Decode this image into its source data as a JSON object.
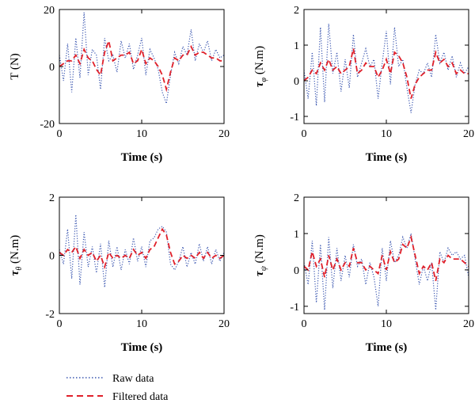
{
  "legend": {
    "raw_label": "Raw data",
    "filtered_label": "Filtered data",
    "raw_color": "#3a56b0",
    "filtered_color": "#e0202a"
  },
  "chart_data": [
    {
      "id": "thrust",
      "type": "line",
      "title": "",
      "xlabel": "Time (s)",
      "ylabel": "T (N)",
      "xlim": [
        0,
        20
      ],
      "ylim": [
        -20,
        20
      ],
      "xticks": [
        0,
        10,
        20
      ],
      "yticks": [
        -20,
        0,
        20
      ],
      "series": [
        {
          "name": "Raw data",
          "x": [
            0,
            0.5,
            1,
            1.5,
            2,
            2.5,
            3,
            3.5,
            4,
            4.5,
            5,
            5.5,
            6,
            6.5,
            7,
            7.5,
            8,
            8.5,
            9,
            9.5,
            10,
            10.5,
            11,
            11.5,
            12,
            12.5,
            13,
            13.5,
            14,
            14.5,
            15,
            15.5,
            16,
            16.5,
            17,
            17.5,
            18,
            18.5,
            19,
            19.5,
            20
          ],
          "y": [
            4,
            -5,
            8,
            -9,
            10,
            -4,
            19,
            -3,
            6,
            4,
            -8,
            10,
            2,
            4,
            -2,
            9,
            3,
            8,
            -1,
            4,
            10,
            -3,
            6,
            3,
            -1,
            -9,
            -13,
            -3,
            5,
            1,
            7,
            4,
            13,
            2,
            8,
            5,
            9,
            2,
            6,
            3,
            4
          ]
        },
        {
          "name": "Filtered data",
          "x": [
            0,
            0.5,
            1,
            1.5,
            2,
            2.5,
            3,
            3.5,
            4,
            4.5,
            5,
            5.5,
            6,
            6.5,
            7,
            7.5,
            8,
            8.5,
            9,
            9.5,
            10,
            10.5,
            11,
            11.5,
            12,
            12.5,
            13,
            13.5,
            14,
            14.5,
            15,
            15.5,
            16,
            16.5,
            17,
            17.5,
            18,
            18.5,
            19,
            19.5,
            20
          ],
          "y": [
            0,
            1,
            2,
            2,
            4,
            1,
            6,
            3,
            2,
            -1,
            -3,
            5,
            9,
            2,
            3,
            4,
            4,
            5,
            1,
            2,
            6,
            1,
            3,
            2,
            0,
            -3,
            -8,
            -2,
            3,
            2,
            4,
            4,
            7,
            4,
            5,
            5,
            4,
            3,
            3,
            2,
            2
          ]
        }
      ]
    },
    {
      "id": "roll",
      "type": "line",
      "title": "",
      "xlabel": "Time (s)",
      "ylabel_symbol": "τ",
      "ylabel_sub": "φ",
      "ylabel_unit": " (N.m)",
      "xlim": [
        0,
        20
      ],
      "ylim": [
        -1.2,
        2
      ],
      "xticks": [
        0,
        10,
        20
      ],
      "yticks": [
        -1,
        0,
        1,
        2
      ],
      "series": [
        {
          "name": "Raw data",
          "x": [
            0,
            0.5,
            1,
            1.5,
            2,
            2.5,
            3,
            3.5,
            4,
            4.5,
            5,
            5.5,
            6,
            6.5,
            7,
            7.5,
            8,
            8.5,
            9,
            9.5,
            10,
            10.5,
            11,
            11.5,
            12,
            12.5,
            13,
            13.5,
            14,
            14.5,
            15,
            15.5,
            16,
            16.5,
            17,
            17.5,
            18,
            18.5,
            19,
            19.5,
            20
          ],
          "y": [
            0.3,
            -0.5,
            0.8,
            -0.7,
            1.5,
            -0.6,
            1.6,
            0.2,
            0.8,
            -0.3,
            0.6,
            -0.2,
            1.3,
            0.1,
            0.5,
            0.9,
            0.4,
            0.6,
            -0.5,
            0.5,
            1.4,
            -0.1,
            1.5,
            0.4,
            0.6,
            -0.2,
            -0.9,
            -0.1,
            0.3,
            0.2,
            0.5,
            0.1,
            1.3,
            0.5,
            0.8,
            0.3,
            0.7,
            0.1,
            0.5,
            0.2,
            0.4
          ]
        },
        {
          "name": "Filtered data",
          "x": [
            0,
            0.5,
            1,
            1.5,
            2,
            2.5,
            3,
            3.5,
            4,
            4.5,
            5,
            5.5,
            6,
            6.5,
            7,
            7.5,
            8,
            8.5,
            9,
            9.5,
            10,
            10.5,
            11,
            11.5,
            12,
            12.5,
            13,
            13.5,
            14,
            14.5,
            15,
            15.5,
            16,
            16.5,
            17,
            17.5,
            18,
            18.5,
            19,
            19.5,
            20
          ],
          "y": [
            0,
            0.1,
            0.3,
            0.2,
            0.5,
            0.3,
            0.6,
            0.3,
            0.4,
            0.2,
            0.3,
            0.4,
            0.9,
            0.2,
            0.3,
            0.5,
            0.4,
            0.4,
            0.1,
            0.3,
            0.6,
            0.2,
            0.8,
            0.7,
            0.5,
            0.1,
            -0.5,
            -0.1,
            0.1,
            0.2,
            0.3,
            0.3,
            0.8,
            0.5,
            0.6,
            0.4,
            0.5,
            0.2,
            0.3,
            0.2,
            0.2
          ]
        }
      ]
    },
    {
      "id": "pitch",
      "type": "line",
      "title": "",
      "xlabel": "Time (s)",
      "ylabel_symbol": "τ",
      "ylabel_sub": "θ",
      "ylabel_unit": " (N.m)",
      "xlim": [
        0,
        20
      ],
      "ylim": [
        -2,
        2
      ],
      "xticks": [
        0,
        10,
        20
      ],
      "yticks": [
        -2,
        0,
        2
      ],
      "series": [
        {
          "name": "Raw data",
          "x": [
            0,
            0.5,
            1,
            1.5,
            2,
            2.5,
            3,
            3.5,
            4,
            4.5,
            5,
            5.5,
            6,
            6.5,
            7,
            7.5,
            8,
            8.5,
            9,
            9.5,
            10,
            10.5,
            11,
            11.5,
            12,
            12.5,
            13,
            13.5,
            14,
            14.5,
            15,
            15.5,
            16,
            16.5,
            17,
            17.5,
            18,
            18.5,
            19,
            19.5,
            20
          ],
          "y": [
            0.2,
            -0.3,
            0.9,
            -0.8,
            1.4,
            -1.0,
            0.8,
            -0.4,
            0.3,
            -0.6,
            0.4,
            -1.1,
            0.5,
            -0.4,
            0.3,
            -0.5,
            0.2,
            -0.3,
            0.6,
            -0.2,
            0.3,
            -0.4,
            0.5,
            0.6,
            0.9,
            1.0,
            0.8,
            -0.3,
            -0.5,
            -0.2,
            0.3,
            -0.4,
            0.1,
            -0.3,
            0.4,
            -0.2,
            0.3,
            -0.3,
            0.2,
            -0.2,
            0.1
          ]
        },
        {
          "name": "Filtered data",
          "x": [
            0,
            0.5,
            1,
            1.5,
            2,
            2.5,
            3,
            3.5,
            4,
            4.5,
            5,
            5.5,
            6,
            6.5,
            7,
            7.5,
            8,
            8.5,
            9,
            9.5,
            10,
            10.5,
            11,
            11.5,
            12,
            12.5,
            13,
            13.5,
            14,
            14.5,
            15,
            15.5,
            16,
            16.5,
            17,
            17.5,
            18,
            18.5,
            19,
            19.5,
            20
          ],
          "y": [
            0.1,
            0.0,
            0.2,
            0.1,
            0.3,
            -0.1,
            0.2,
            0.0,
            0.1,
            -0.2,
            0.0,
            -0.4,
            0.1,
            -0.1,
            0.0,
            -0.1,
            0.0,
            -0.1,
            0.2,
            0.0,
            0.1,
            -0.1,
            0.2,
            0.3,
            0.6,
            0.9,
            0.7,
            0.1,
            -0.3,
            -0.2,
            0.0,
            -0.1,
            0.0,
            -0.1,
            0.1,
            -0.1,
            0.1,
            -0.1,
            0.0,
            -0.1,
            0.0
          ]
        }
      ]
    },
    {
      "id": "yaw",
      "type": "line",
      "title": "",
      "xlabel": "Time (s)",
      "ylabel_symbol": "τ",
      "ylabel_sub": "ψ",
      "ylabel_unit": " (N.m)",
      "xlim": [
        0,
        20
      ],
      "ylim": [
        -1.2,
        2
      ],
      "xticks": [
        0,
        10,
        20
      ],
      "yticks": [
        -1,
        0,
        1,
        2
      ],
      "series": [
        {
          "name": "Raw data",
          "x": [
            0,
            0.5,
            1,
            1.5,
            2,
            2.5,
            3,
            3.5,
            4,
            4.5,
            5,
            5.5,
            6,
            6.5,
            7,
            7.5,
            8,
            8.5,
            9,
            9.5,
            10,
            10.5,
            11,
            11.5,
            12,
            12.5,
            13,
            13.5,
            14,
            14.5,
            15,
            15.5,
            16,
            16.5,
            17,
            17.5,
            18,
            18.5,
            19,
            19.5,
            20
          ],
          "y": [
            0.2,
            -0.4,
            0.8,
            -0.9,
            0.7,
            -1.1,
            0.9,
            -0.5,
            0.6,
            -0.3,
            0.4,
            -0.2,
            0.7,
            0.1,
            0.3,
            -0.4,
            0.2,
            -0.2,
            -1.0,
            0.6,
            -0.3,
            0.8,
            0.2,
            0.4,
            0.9,
            0.6,
            1.0,
            0.3,
            -0.4,
            0.1,
            -0.3,
            0.2,
            -1.1,
            0.5,
            0.2,
            0.6,
            0.4,
            0.5,
            0.3,
            0.4,
            -0.2
          ]
        },
        {
          "name": "Filtered data",
          "x": [
            0,
            0.5,
            1,
            1.5,
            2,
            2.5,
            3,
            3.5,
            4,
            4.5,
            5,
            5.5,
            6,
            6.5,
            7,
            7.5,
            8,
            8.5,
            9,
            9.5,
            10,
            10.5,
            11,
            11.5,
            12,
            12.5,
            13,
            13.5,
            14,
            14.5,
            15,
            15.5,
            16,
            16.5,
            17,
            17.5,
            18,
            18.5,
            19,
            19.5,
            20
          ],
          "y": [
            0.1,
            0.0,
            0.5,
            0.1,
            0.3,
            -0.2,
            0.4,
            0.0,
            0.3,
            0.0,
            0.2,
            0.1,
            0.6,
            0.2,
            0.2,
            0.0,
            0.1,
            0.0,
            -0.1,
            0.4,
            0.0,
            0.5,
            0.2,
            0.3,
            0.7,
            0.6,
            0.9,
            0.4,
            -0.1,
            0.1,
            0.0,
            0.2,
            -0.3,
            0.3,
            0.2,
            0.4,
            0.3,
            0.3,
            0.3,
            0.2,
            0.1
          ]
        }
      ]
    }
  ]
}
